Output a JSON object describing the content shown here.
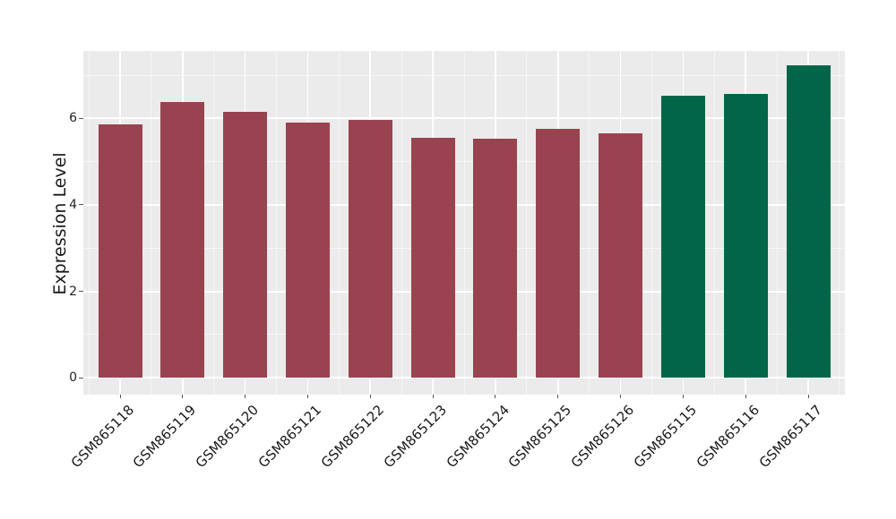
{
  "chart_data": {
    "type": "bar",
    "title": "",
    "xlabel": "",
    "ylabel": "Expression Level",
    "categories": [
      "GSM865118",
      "GSM865119",
      "GSM865120",
      "GSM865121",
      "GSM865122",
      "GSM865123",
      "GSM865124",
      "GSM865125",
      "GSM865126",
      "GSM865115",
      "GSM865116",
      "GSM865117"
    ],
    "values": [
      5.86,
      6.38,
      6.16,
      5.9,
      5.97,
      5.56,
      5.54,
      5.76,
      5.66,
      6.52,
      6.57,
      7.22
    ],
    "bar_colors": [
      "#9A4350",
      "#9A4350",
      "#9A4350",
      "#9A4350",
      "#9A4350",
      "#9A4350",
      "#9A4350",
      "#9A4350",
      "#9A4350",
      "#006647",
      "#006647",
      "#006647"
    ],
    "group_colors": {
      "red_group": "#9A4350",
      "green_group": "#006647"
    },
    "yticks": [
      0,
      2,
      4,
      6
    ],
    "ytick_labels": [
      "0",
      "2",
      "4",
      "6"
    ],
    "yticks_minor": [
      1,
      3,
      5,
      7
    ],
    "ylim": [
      -0.39,
      7.56
    ],
    "grid": "on",
    "legend": "none",
    "style": {
      "panel_background": "#EBEBEB",
      "grid_color": "#FFFFFF",
      "tick_color": "#555555",
      "label_color": "#1A1A1A",
      "figure_background": "#FFFFFF"
    }
  }
}
